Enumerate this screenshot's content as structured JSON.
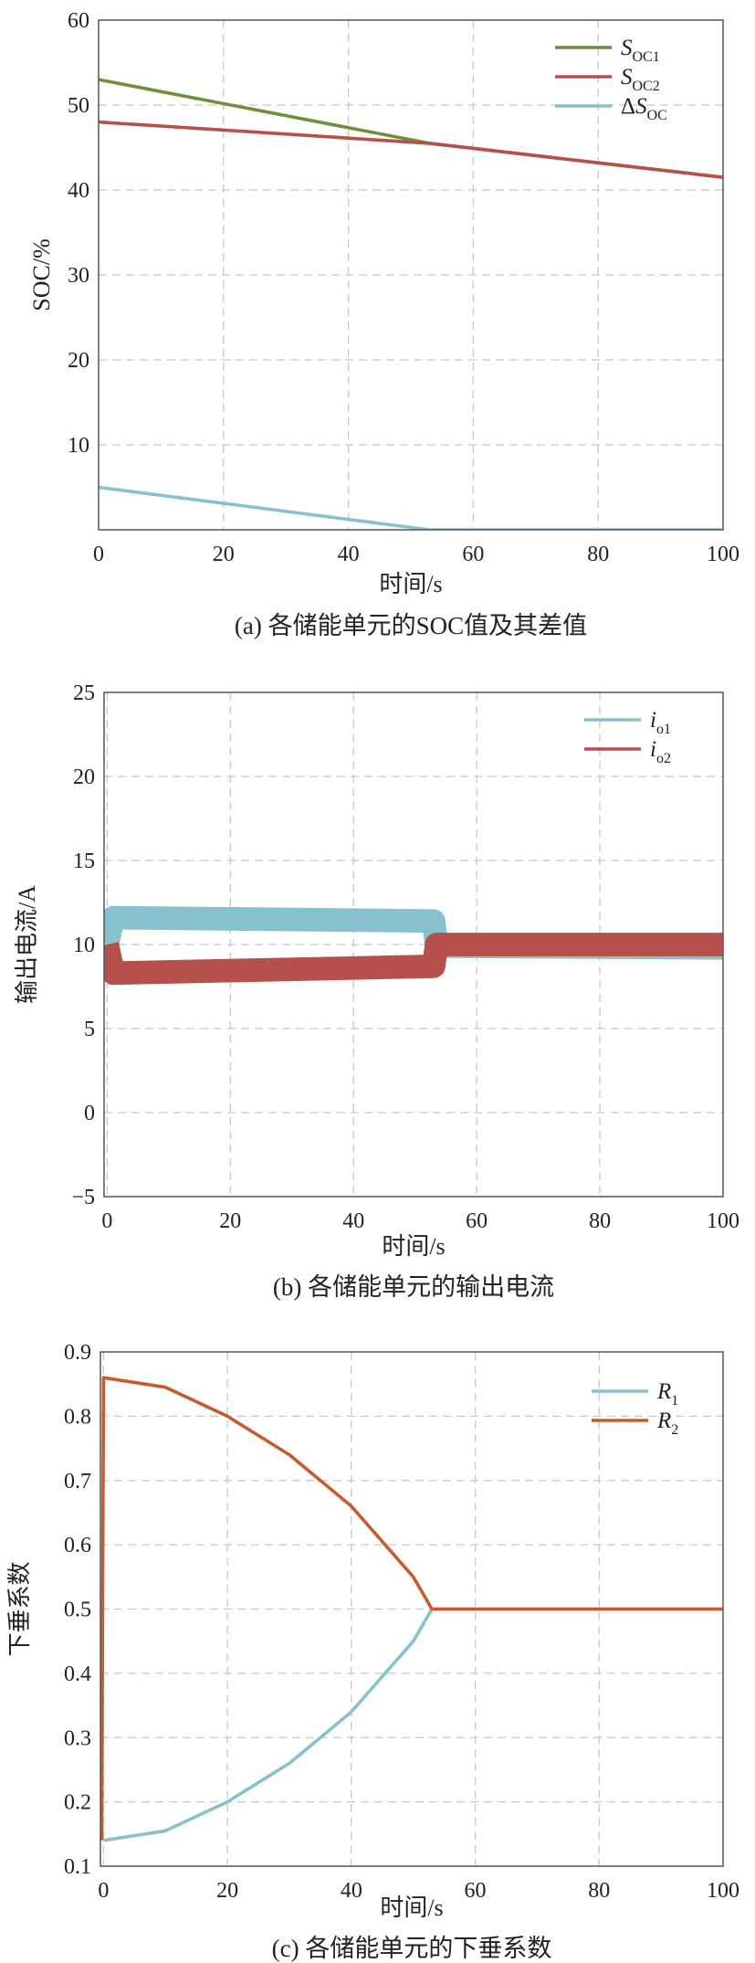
{
  "chart_data": [
    {
      "type": "line",
      "caption": "(a) 各储能单元的SOC值及其差值",
      "xlabel": "时间/s",
      "ylabel": "SOC/%",
      "xlim": [
        0,
        100
      ],
      "ylim": [
        0,
        60
      ],
      "xticks": [
        0,
        20,
        40,
        60,
        80,
        100
      ],
      "yticks": [
        10,
        20,
        30,
        40,
        50,
        60
      ],
      "grid": true,
      "legend_position": "top-right",
      "series": [
        {
          "name": "S",
          "sub": "OC1",
          "prefix": "",
          "color": "#6f8f3a",
          "x": [
            0,
            53,
            100
          ],
          "y": [
            53,
            45.5,
            41.5
          ]
        },
        {
          "name": "S",
          "sub": "OC2",
          "prefix": "",
          "color": "#b5504a",
          "x": [
            0,
            53,
            100
          ],
          "y": [
            48,
            45.5,
            41.5
          ]
        },
        {
          "name": "S",
          "sub": "OC",
          "prefix": "Δ",
          "color": "#86c1cd",
          "x": [
            0,
            53,
            100
          ],
          "y": [
            5,
            0,
            0
          ]
        }
      ]
    },
    {
      "type": "line",
      "caption": "(b) 各储能单元的输出电流",
      "xlabel": "时间/s",
      "ylabel": "输出电流/A",
      "xlim": [
        -0.5,
        100
      ],
      "ylim": [
        -5,
        25
      ],
      "xticks": [
        0,
        20,
        40,
        60,
        80,
        100
      ],
      "yticks": [
        -5,
        0,
        5,
        10,
        15,
        20,
        25
      ],
      "ytick_labels": [
        "−5",
        "0",
        "5",
        "10",
        "15",
        "20",
        "25"
      ],
      "grid": true,
      "legend_position": "top-right",
      "series": [
        {
          "name": "i",
          "sub": "o1",
          "prefix": "",
          "color": "#86c1cd",
          "band": 0.7,
          "x": [
            0,
            1,
            53,
            53.5,
            100
          ],
          "y": [
            10,
            11.6,
            11.4,
            9.9,
            9.8
          ]
        },
        {
          "name": "i",
          "sub": "o2",
          "prefix": "",
          "color": "#b5504a",
          "band": 0.7,
          "x": [
            0,
            1,
            53,
            53.5,
            100
          ],
          "y": [
            10,
            8.3,
            8.7,
            10.0,
            10.0
          ]
        }
      ]
    },
    {
      "type": "line",
      "caption": "(c) 各储能单元的下垂系数",
      "xlabel": "时间/s",
      "ylabel": "下垂系数",
      "xlim": [
        -0.5,
        100
      ],
      "ylim": [
        0.1,
        0.9
      ],
      "xticks": [
        0,
        20,
        40,
        60,
        80,
        100
      ],
      "yticks": [
        0.1,
        0.2,
        0.3,
        0.4,
        0.5,
        0.6,
        0.7,
        0.8,
        0.9
      ],
      "grid": true,
      "legend_position": "top-right",
      "series": [
        {
          "name": "R",
          "sub": "1",
          "prefix": "",
          "color": "#86c1cd",
          "x": [
            0,
            10,
            20,
            30,
            40,
            50,
            53,
            100
          ],
          "y": [
            0.14,
            0.155,
            0.2,
            0.26,
            0.34,
            0.45,
            0.5,
            0.5
          ]
        },
        {
          "name": "R",
          "sub": "2",
          "prefix": "",
          "color": "#c75b2e",
          "x": [
            -0.3,
            0,
            10,
            20,
            30,
            40,
            50,
            53,
            100
          ],
          "y": [
            0.14,
            0.86,
            0.845,
            0.8,
            0.74,
            0.66,
            0.55,
            0.5,
            0.5
          ]
        }
      ]
    }
  ]
}
